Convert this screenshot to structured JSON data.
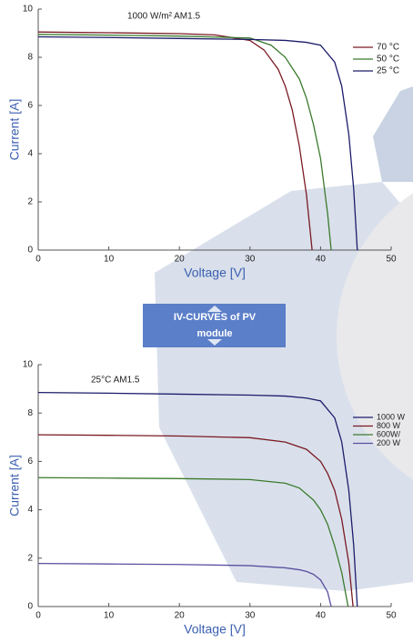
{
  "chart_data": [
    {
      "type": "line",
      "annotation": "1000 W/m²   AM1.5",
      "x_label": "Voltage [V]",
      "y_label": "Current [A]",
      "xlim": [
        0,
        50
      ],
      "ylim": [
        0,
        10
      ],
      "xticks": [
        0,
        10,
        20,
        30,
        40,
        50
      ],
      "yticks": [
        0,
        2,
        4,
        6,
        8,
        10
      ],
      "series": [
        {
          "name": "70 °C",
          "color": "#7a1a22",
          "x": [
            0,
            10,
            20,
            25,
            30,
            32,
            34,
            35,
            36,
            37,
            38,
            38.8
          ],
          "values": [
            9.05,
            9.02,
            8.98,
            8.93,
            8.7,
            8.3,
            7.5,
            6.8,
            5.8,
            4.3,
            2.3,
            0
          ]
        },
        {
          "name": "50 °C",
          "color": "#3b7a2e",
          "x": [
            0,
            10,
            20,
            30,
            33,
            35,
            37,
            38,
            39,
            40,
            41,
            41.5
          ],
          "values": [
            8.95,
            8.92,
            8.88,
            8.8,
            8.5,
            8.0,
            7.1,
            6.3,
            5.2,
            3.8,
            1.5,
            0
          ]
        },
        {
          "name": "25 °C",
          "color": "#1c1c6b",
          "x": [
            0,
            10,
            20,
            30,
            35,
            38,
            40,
            42,
            43,
            44,
            44.7,
            45.2
          ],
          "values": [
            8.85,
            8.82,
            8.78,
            8.74,
            8.7,
            8.62,
            8.5,
            7.8,
            6.8,
            4.8,
            2.5,
            0
          ]
        }
      ]
    },
    {
      "type": "line",
      "annotation": "25°C   AM1.5",
      "x_label": "Voltage [V]",
      "y_label": "Current [A]",
      "xlim": [
        0,
        50
      ],
      "ylim": [
        0,
        10
      ],
      "xticks": [
        0,
        10,
        20,
        30,
        40,
        50
      ],
      "yticks": [
        0,
        2,
        4,
        6,
        8,
        10
      ],
      "series": [
        {
          "name": "1000 W",
          "color": "#1c1c6b",
          "x": [
            0,
            10,
            20,
            30,
            35,
            38,
            40,
            42,
            43,
            44,
            44.7,
            45.2
          ],
          "values": [
            8.85,
            8.82,
            8.78,
            8.74,
            8.7,
            8.62,
            8.5,
            7.8,
            6.8,
            4.8,
            2.5,
            0
          ]
        },
        {
          "name": "800 W",
          "color": "#7a1a22",
          "x": [
            0,
            10,
            20,
            30,
            35,
            38,
            40,
            41,
            42,
            43,
            44,
            44.6
          ],
          "values": [
            7.1,
            7.08,
            7.05,
            6.98,
            6.8,
            6.5,
            6.0,
            5.5,
            4.8,
            3.6,
            1.8,
            0
          ]
        },
        {
          "name": "600W/",
          "color": "#3b7a2e",
          "x": [
            0,
            10,
            20,
            30,
            35,
            37,
            39,
            40,
            41,
            42,
            43,
            43.9
          ],
          "values": [
            5.33,
            5.31,
            5.29,
            5.25,
            5.1,
            4.9,
            4.4,
            4.0,
            3.4,
            2.5,
            1.4,
            0
          ]
        },
        {
          "name": "200 W",
          "color": "#5a50a0",
          "x": [
            0,
            10,
            20,
            30,
            35,
            37,
            38,
            39,
            40,
            41,
            41.5
          ],
          "values": [
            1.78,
            1.76,
            1.74,
            1.69,
            1.6,
            1.52,
            1.45,
            1.33,
            1.1,
            0.6,
            0
          ]
        }
      ]
    }
  ],
  "banner": {
    "lines": [
      "IV-CURVES of PV",
      "module"
    ]
  }
}
